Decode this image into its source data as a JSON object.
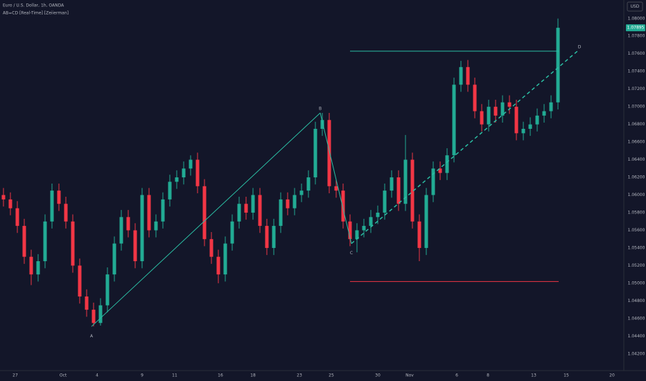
{
  "chart_data": {
    "type": "candlestick",
    "title": "Euro / U.S. Dollar, 1h, OANDA",
    "subtitle": "AB=CD [Real-Time] [Zeiierman]",
    "currency": "USD",
    "up_color": "#22ab94",
    "down_color": "#f23645",
    "x": [
      5,
      15,
      25,
      35,
      45,
      55,
      65,
      75,
      85,
      95,
      105,
      115,
      125,
      135,
      145,
      155,
      165,
      175,
      185,
      195,
      205,
      215,
      225,
      235,
      245,
      255,
      265,
      275,
      285,
      295,
      305,
      315,
      325,
      335,
      345,
      355,
      365,
      375,
      385,
      395,
      405,
      415,
      425,
      435,
      445,
      455,
      465,
      475,
      485,
      495,
      505,
      515,
      525,
      535,
      545,
      555,
      565,
      575,
      585,
      595,
      605,
      615,
      625,
      635,
      645,
      655,
      665,
      675,
      685,
      695,
      705,
      715,
      725,
      735,
      745,
      755,
      765,
      775,
      785,
      795,
      805
    ],
    "open": [
      1.06,
      1.0595,
      1.0585,
      1.0565,
      1.053,
      1.051,
      1.0525,
      1.057,
      1.0605,
      1.059,
      1.057,
      1.052,
      1.0485,
      1.047,
      1.0455,
      1.0475,
      1.051,
      1.0545,
      1.0575,
      1.056,
      1.0525,
      1.06,
      1.056,
      1.057,
      1.0595,
      1.0615,
      1.062,
      1.063,
      1.064,
      1.061,
      1.055,
      1.053,
      1.051,
      1.0545,
      1.057,
      1.059,
      1.058,
      1.06,
      1.0565,
      1.054,
      1.0565,
      1.0595,
      1.0585,
      1.06,
      1.0605,
      1.062,
      1.0675,
      1.0685,
      1.061,
      1.0605,
      1.057,
      1.055,
      1.056,
      1.0565,
      1.0575,
      1.058,
      1.0605,
      1.062,
      1.059,
      1.064,
      1.057,
      1.054,
      1.06,
      1.063,
      1.0625,
      1.0645,
      1.0725,
      1.0745,
      1.0725,
      1.0695,
      1.068,
      1.07,
      1.069,
      1.0705,
      1.07,
      1.067,
      1.0675,
      1.068,
      1.069,
      1.0695,
      1.0705
    ],
    "high": [
      1.0608,
      1.0603,
      1.0593,
      1.0573,
      1.0538,
      1.0533,
      1.0578,
      1.0613,
      1.0613,
      1.0598,
      1.0578,
      1.0528,
      1.0493,
      1.0478,
      1.0483,
      1.0518,
      1.0553,
      1.0583,
      1.0583,
      1.0568,
      1.0608,
      1.0608,
      1.0578,
      1.0603,
      1.0623,
      1.0628,
      1.0638,
      1.0645,
      1.0648,
      1.0618,
      1.0558,
      1.0538,
      1.0553,
      1.0578,
      1.0598,
      1.0598,
      1.0608,
      1.0608,
      1.0573,
      1.0573,
      1.0603,
      1.0603,
      1.0608,
      1.0613,
      1.0628,
      1.0683,
      1.0693,
      1.0693,
      1.0618,
      1.0613,
      1.0578,
      1.0568,
      1.0573,
      1.0583,
      1.0588,
      1.0613,
      1.0628,
      1.0628,
      1.0668,
      1.0648,
      1.0578,
      1.0608,
      1.0638,
      1.0638,
      1.0653,
      1.0733,
      1.0752,
      1.0753,
      1.0733,
      1.0703,
      1.0708,
      1.0708,
      1.0713,
      1.0713,
      1.0708,
      1.0683,
      1.0688,
      1.0698,
      1.0703,
      1.0713,
      1.08
    ],
    "low": [
      1.0587,
      1.0577,
      1.0557,
      1.0522,
      1.0498,
      1.0502,
      1.0517,
      1.0562,
      1.0582,
      1.0562,
      1.0512,
      1.0477,
      1.0462,
      1.0451,
      1.0452,
      1.0467,
      1.0502,
      1.0537,
      1.0552,
      1.0517,
      1.0517,
      1.0552,
      1.0552,
      1.0562,
      1.0587,
      1.0607,
      1.0612,
      1.0622,
      1.0602,
      1.0542,
      1.0522,
      1.05,
      1.0502,
      1.0537,
      1.0562,
      1.0572,
      1.0572,
      1.0557,
      1.0532,
      1.0532,
      1.0557,
      1.0577,
      1.0577,
      1.0592,
      1.0597,
      1.0612,
      1.0667,
      1.0602,
      1.0597,
      1.0562,
      1.0542,
      1.0535,
      1.0552,
      1.0557,
      1.0567,
      1.0572,
      1.0597,
      1.0582,
      1.0582,
      1.0562,
      1.0525,
      1.0532,
      1.0592,
      1.0617,
      1.0617,
      1.0637,
      1.0717,
      1.0717,
      1.0687,
      1.0672,
      1.0672,
      1.0682,
      1.0682,
      1.0692,
      1.0662,
      1.0662,
      1.0667,
      1.0672,
      1.0682,
      1.0687,
      1.0697
    ],
    "close": [
      1.0595,
      1.0585,
      1.0565,
      1.053,
      1.051,
      1.0525,
      1.057,
      1.0605,
      1.059,
      1.057,
      1.052,
      1.0485,
      1.047,
      1.0455,
      1.0475,
      1.051,
      1.0545,
      1.0575,
      1.056,
      1.0525,
      1.06,
      1.056,
      1.057,
      1.0595,
      1.0615,
      1.062,
      1.063,
      1.064,
      1.061,
      1.055,
      1.053,
      1.051,
      1.0545,
      1.057,
      1.059,
      1.058,
      1.06,
      1.0565,
      1.054,
      1.0565,
      1.0595,
      1.0585,
      1.06,
      1.0605,
      1.062,
      1.0675,
      1.0685,
      1.061,
      1.0605,
      1.057,
      1.055,
      1.056,
      1.0565,
      1.0575,
      1.058,
      1.0605,
      1.062,
      1.059,
      1.064,
      1.057,
      1.054,
      1.06,
      1.063,
      1.0625,
      1.0645,
      1.0725,
      1.0745,
      1.0725,
      1.0695,
      1.068,
      1.07,
      1.069,
      1.0705,
      1.07,
      1.067,
      1.0675,
      1.068,
      1.069,
      1.0695,
      1.0705,
      1.07895
    ],
    "xlim": [
      0,
      900
    ],
    "ylim": [
      1.0401,
      1.0821
    ],
    "xticks": [
      {
        "value": 22,
        "label": "27"
      },
      {
        "value": 91,
        "label": "Oct"
      },
      {
        "value": 140,
        "label": "4"
      },
      {
        "value": 205,
        "label": "9"
      },
      {
        "value": 252,
        "label": "11"
      },
      {
        "value": 318,
        "label": "16"
      },
      {
        "value": 365,
        "label": "18"
      },
      {
        "value": 432,
        "label": "23"
      },
      {
        "value": 478,
        "label": "25"
      },
      {
        "value": 545,
        "label": "30"
      },
      {
        "value": 591,
        "label": "Nov"
      },
      {
        "value": 659,
        "label": "6"
      },
      {
        "value": 704,
        "label": "8"
      },
      {
        "value": 770,
        "label": "13"
      },
      {
        "value": 817,
        "label": "15"
      },
      {
        "value": 883,
        "label": "20"
      }
    ],
    "yticks": [
      {
        "value": 1.08,
        "label": "1.08000"
      },
      {
        "value": 1.078,
        "label": "1.07800"
      },
      {
        "value": 1.076,
        "label": "1.07600"
      },
      {
        "value": 1.074,
        "label": "1.07400"
      },
      {
        "value": 1.072,
        "label": "1.07200"
      },
      {
        "value": 1.07,
        "label": "1.07000"
      },
      {
        "value": 1.068,
        "label": "1.06800"
      },
      {
        "value": 1.066,
        "label": "1.06600"
      },
      {
        "value": 1.064,
        "label": "1.06400"
      },
      {
        "value": 1.062,
        "label": "1.06200"
      },
      {
        "value": 1.06,
        "label": "1.06000"
      },
      {
        "value": 1.058,
        "label": "1.05800"
      },
      {
        "value": 1.056,
        "label": "1.05600"
      },
      {
        "value": 1.054,
        "label": "1.05400"
      },
      {
        "value": 1.052,
        "label": "1.05200"
      },
      {
        "value": 1.05,
        "label": "1.05000"
      },
      {
        "value": 1.048,
        "label": "1.04800"
      },
      {
        "value": 1.046,
        "label": "1.04600"
      },
      {
        "value": 1.044,
        "label": "1.04400"
      },
      {
        "value": 1.042,
        "label": "1.04200"
      }
    ],
    "last_price": 1.07895,
    "pattern_color": "#2bbfa4",
    "pattern": [
      {
        "label": "A",
        "x": 132,
        "y": 1.0451
      },
      {
        "label": "B",
        "x": 462,
        "y": 1.0693
      },
      {
        "label": "C",
        "x": 507,
        "y": 1.0545
      },
      {
        "label": "D",
        "x": 833,
        "y": 1.0763
      }
    ],
    "levels": [
      {
        "value": 1.0763,
        "color": "#2bbfa4",
        "x": [
          505,
          806
        ]
      },
      {
        "value": 1.0502,
        "color": "#f23645",
        "x": [
          505,
          806
        ]
      }
    ]
  }
}
